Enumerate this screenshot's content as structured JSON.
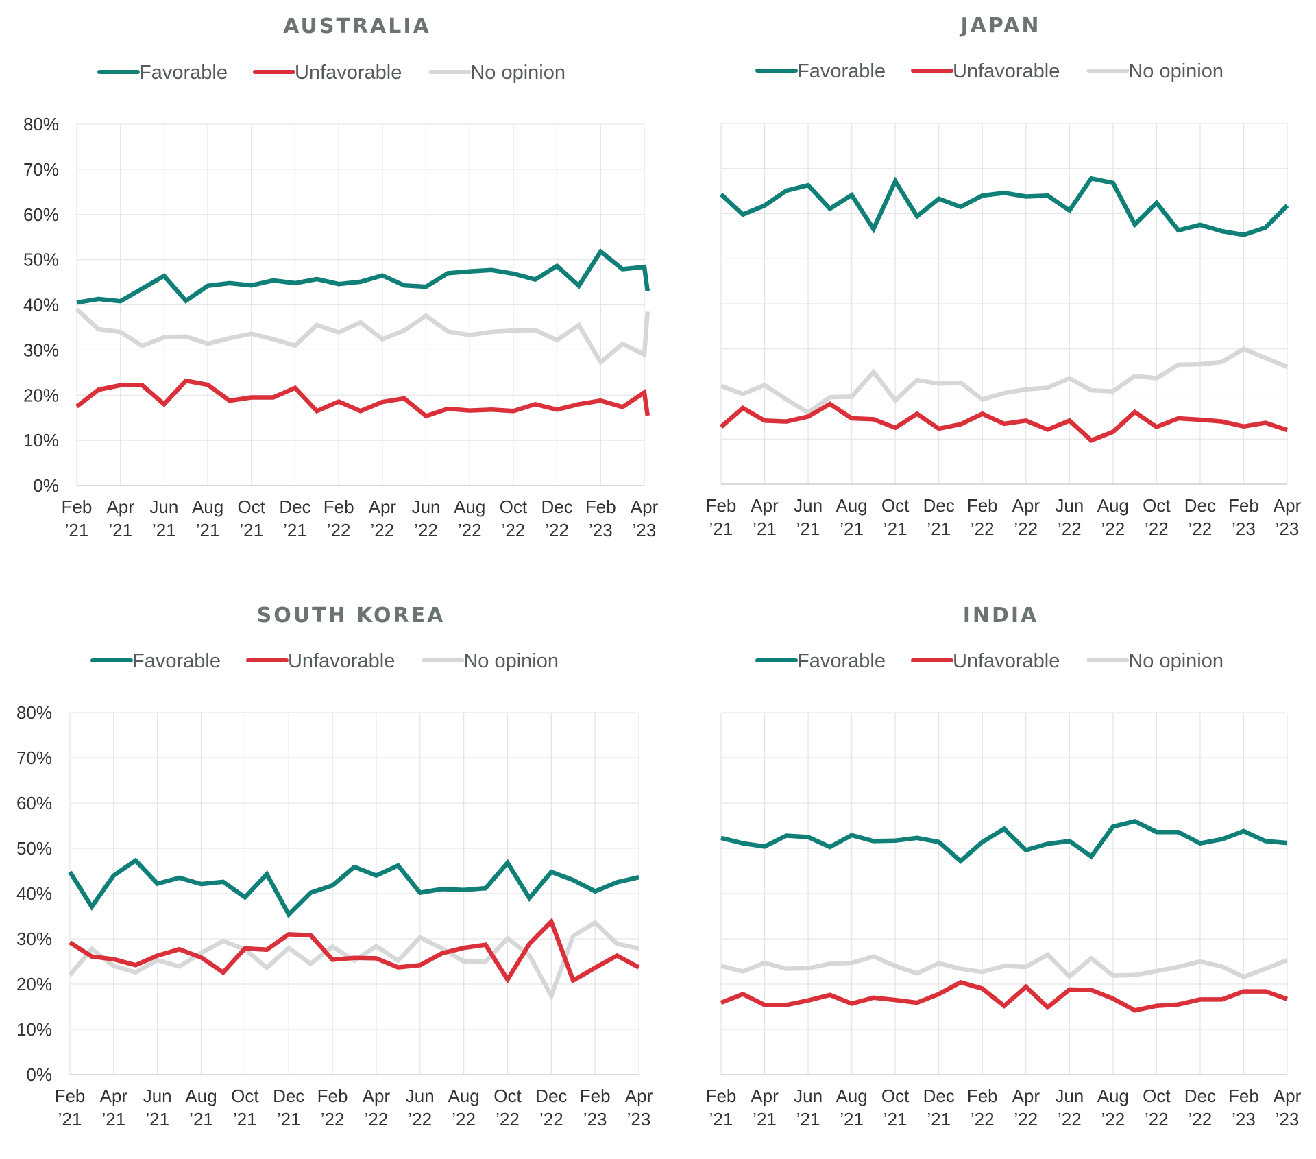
{
  "legend": [
    {
      "name": "Favorable",
      "color": "#0f7f78"
    },
    {
      "name": "Unfavorable",
      "color": "#d9303a"
    },
    {
      "name": "No opinion",
      "color": "#d6d8d7"
    }
  ],
  "chart_data": [
    {
      "type": "line",
      "title": "AUSTRALIA",
      "ylim": [
        0,
        80
      ],
      "yticks": [
        "0%",
        "10%",
        "20%",
        "30%",
        "40%",
        "50%",
        "60%",
        "70%",
        "80%"
      ],
      "xtick_labels": [
        [
          "Feb",
          "’21"
        ],
        [
          "Apr",
          "’21"
        ],
        [
          "Jun",
          "’21"
        ],
        [
          "Aug",
          "’21"
        ],
        [
          "Oct",
          "’21"
        ],
        [
          "Dec",
          "’21"
        ],
        [
          "Feb",
          "’22"
        ],
        [
          "Apr",
          "’22"
        ],
        [
          "Jun",
          "’22"
        ],
        [
          "Aug",
          "’22"
        ],
        [
          "Oct",
          "’22"
        ],
        [
          "Dec",
          "’22"
        ],
        [
          "Feb",
          "’23"
        ],
        [
          "Apr",
          "’23"
        ]
      ],
      "grid": true,
      "series": [
        {
          "name": "Favorable",
          "x": [
            0,
            1,
            2,
            3,
            4,
            5,
            6,
            7,
            8,
            9,
            10,
            11,
            12,
            13,
            14,
            15,
            16,
            17,
            18,
            19,
            20,
            21,
            22,
            23,
            24,
            25,
            26,
            26.15
          ],
          "values": [
            40.5,
            41.3,
            40.8,
            43.6,
            46.4,
            40.9,
            44.2,
            44.8,
            44.3,
            45.4,
            44.8,
            45.7,
            44.6,
            45.1,
            46.5,
            44.3,
            44.0,
            47.0,
            47.4,
            47.7,
            46.9,
            45.6,
            48.6,
            44.2,
            51.8,
            47.9,
            48.4,
            43.0
          ]
        },
        {
          "name": "Unfavorable",
          "x": [
            0,
            1,
            2,
            3,
            4,
            5,
            6,
            7,
            8,
            9,
            10,
            11,
            12,
            13,
            14,
            15,
            16,
            17,
            18,
            19,
            20,
            21,
            22,
            23,
            24,
            25,
            26,
            26.15
          ],
          "values": [
            17.5,
            21.2,
            22.2,
            22.2,
            18.0,
            23.2,
            22.3,
            18.8,
            19.5,
            19.5,
            21.6,
            16.5,
            18.6,
            16.5,
            18.5,
            19.3,
            15.4,
            17.0,
            16.6,
            16.8,
            16.5,
            18.0,
            16.8,
            18.0,
            18.8,
            17.4,
            20.6,
            15.5
          ]
        },
        {
          "name": "No opinion",
          "x": [
            0,
            1,
            2,
            3,
            4,
            5,
            6,
            7,
            8,
            9,
            10,
            11,
            12,
            13,
            14,
            15,
            16,
            17,
            18,
            19,
            20,
            21,
            22,
            23,
            24,
            25,
            26,
            26.15
          ],
          "values": [
            39.0,
            34.6,
            34.0,
            30.9,
            32.8,
            33.0,
            31.4,
            32.6,
            33.6,
            32.4,
            31.0,
            35.5,
            33.9,
            36.1,
            32.4,
            34.3,
            37.6,
            34.1,
            33.3,
            34.0,
            34.3,
            34.4,
            32.2,
            35.5,
            27.3,
            31.4,
            29.0,
            38.5
          ]
        }
      ]
    },
    {
      "type": "line",
      "title": "JAPAN",
      "ylim": [
        0,
        80
      ],
      "yticks": [],
      "xtick_labels": [
        [
          "Feb",
          "’21"
        ],
        [
          "Apr",
          "’21"
        ],
        [
          "Jun",
          "’21"
        ],
        [
          "Aug",
          "’21"
        ],
        [
          "Oct",
          "’21"
        ],
        [
          "Dec",
          "’21"
        ],
        [
          "Feb",
          "’22"
        ],
        [
          "Apr",
          "’22"
        ],
        [
          "Jun",
          "’22"
        ],
        [
          "Aug",
          "’22"
        ],
        [
          "Oct",
          "’22"
        ],
        [
          "Dec",
          "’22"
        ],
        [
          "Feb",
          "’23"
        ],
        [
          "Apr",
          "’23"
        ]
      ],
      "grid": true,
      "series": [
        {
          "name": "Favorable",
          "x": [
            0,
            1,
            2,
            3,
            4,
            5,
            6,
            7,
            8,
            9,
            10,
            11,
            12,
            13,
            14,
            15,
            16,
            17,
            18,
            19,
            20,
            21,
            22,
            23,
            24,
            25,
            26
          ],
          "values": [
            64.3,
            59.8,
            61.8,
            65.1,
            66.3,
            61.1,
            64.1,
            56.6,
            67.2,
            59.4,
            63.3,
            61.5,
            64.0,
            64.6,
            63.8,
            64.0,
            60.7,
            67.8,
            66.8,
            57.6,
            62.4,
            56.3,
            57.5,
            56.1,
            55.3,
            56.9,
            61.8
          ]
        },
        {
          "name": "Unfavorable",
          "x": [
            0,
            1,
            2,
            3,
            4,
            5,
            6,
            7,
            8,
            9,
            10,
            11,
            12,
            13,
            14,
            15,
            16,
            17,
            18,
            19,
            20,
            21,
            22,
            23,
            24,
            25,
            26
          ],
          "values": [
            12.7,
            16.9,
            14.1,
            13.9,
            15.0,
            17.8,
            14.6,
            14.4,
            12.5,
            15.6,
            12.3,
            13.3,
            15.6,
            13.4,
            14.1,
            12.1,
            14.1,
            9.7,
            11.6,
            16.0,
            12.7,
            14.6,
            14.3,
            13.9,
            12.8,
            13.6,
            12.0
          ]
        },
        {
          "name": "No opinion",
          "x": [
            0,
            1,
            2,
            3,
            4,
            5,
            6,
            7,
            8,
            9,
            10,
            11,
            12,
            13,
            14,
            15,
            16,
            17,
            18,
            19,
            20,
            21,
            22,
            23,
            24,
            25,
            26
          ],
          "values": [
            21.8,
            20.0,
            22.0,
            18.8,
            15.9,
            19.3,
            19.4,
            24.9,
            18.6,
            23.1,
            22.3,
            22.5,
            18.8,
            20.2,
            21.0,
            21.4,
            23.5,
            20.8,
            20.6,
            24.0,
            23.5,
            26.5,
            26.6,
            27.1,
            30.0,
            28.0,
            26.0
          ]
        }
      ]
    },
    {
      "type": "line",
      "title": "SOUTH KOREA",
      "ylim": [
        0,
        80
      ],
      "yticks": [
        "0%",
        "10%",
        "20%",
        "30%",
        "40%",
        "50%",
        "60%",
        "70%",
        "80%"
      ],
      "xtick_labels": [
        [
          "Feb",
          "’21"
        ],
        [
          "Apr",
          "’21"
        ],
        [
          "Jun",
          "’21"
        ],
        [
          "Aug",
          "’21"
        ],
        [
          "Oct",
          "’21"
        ],
        [
          "Dec",
          "’21"
        ],
        [
          "Feb",
          "’22"
        ],
        [
          "Apr",
          "’22"
        ],
        [
          "Jun",
          "’22"
        ],
        [
          "Aug",
          "’22"
        ],
        [
          "Oct",
          "’22"
        ],
        [
          "Dec",
          "’22"
        ],
        [
          "Feb",
          "’23"
        ],
        [
          "Apr",
          "’23"
        ]
      ],
      "grid": true,
      "series": [
        {
          "name": "Favorable",
          "x": [
            0,
            1,
            2,
            3,
            4,
            5,
            6,
            7,
            8,
            9,
            10,
            11,
            12,
            13,
            14,
            15,
            16,
            17,
            18,
            19,
            20,
            21,
            22,
            23,
            24,
            25,
            26
          ],
          "values": [
            44.8,
            37.1,
            44.0,
            47.3,
            42.2,
            43.5,
            42.1,
            42.6,
            39.2,
            44.3,
            35.4,
            40.2,
            41.8,
            45.9,
            44.0,
            46.2,
            40.2,
            41.0,
            40.8,
            41.2,
            46.8,
            39.0,
            44.8,
            43.0,
            40.5,
            42.5,
            43.6
          ]
        },
        {
          "name": "Unfavorable",
          "x": [
            0,
            1,
            2,
            3,
            4,
            5,
            6,
            7,
            8,
            9,
            10,
            11,
            12,
            13,
            14,
            15,
            16,
            17,
            18,
            19,
            20,
            21,
            22,
            23,
            24,
            25,
            26
          ],
          "values": [
            29.2,
            26.1,
            25.5,
            24.2,
            26.3,
            27.7,
            25.9,
            22.6,
            27.9,
            27.6,
            31.0,
            30.8,
            25.4,
            25.8,
            25.7,
            23.7,
            24.2,
            26.8,
            28.0,
            28.7,
            21.0,
            28.9,
            33.8,
            20.8,
            23.6,
            26.3,
            23.7
          ]
        },
        {
          "name": "No opinion",
          "x": [
            0,
            1,
            2,
            3,
            4,
            5,
            6,
            7,
            8,
            9,
            10,
            11,
            12,
            13,
            14,
            15,
            16,
            17,
            18,
            19,
            20,
            21,
            22,
            23,
            24,
            25,
            26
          ],
          "values": [
            22.0,
            27.8,
            24.0,
            22.6,
            25.3,
            23.9,
            26.9,
            29.5,
            27.7,
            23.6,
            28.0,
            24.5,
            28.3,
            25.2,
            28.4,
            25.2,
            30.3,
            27.9,
            25.0,
            25.0,
            30.1,
            26.4,
            17.4,
            30.6,
            33.6,
            28.9,
            27.9
          ]
        }
      ]
    },
    {
      "type": "line",
      "title": "INDIA",
      "ylim": [
        0,
        80
      ],
      "yticks": [],
      "xtick_labels": [
        [
          "Feb",
          "’21"
        ],
        [
          "Apr",
          "’21"
        ],
        [
          "Jun",
          "’21"
        ],
        [
          "Aug",
          "’21"
        ],
        [
          "Oct",
          "’21"
        ],
        [
          "Dec",
          "’21"
        ],
        [
          "Feb",
          "’22"
        ],
        [
          "Apr",
          "’22"
        ],
        [
          "Jun",
          "’22"
        ],
        [
          "Aug",
          "’22"
        ],
        [
          "Oct",
          "’22"
        ],
        [
          "Dec",
          "’22"
        ],
        [
          "Feb",
          "’23"
        ],
        [
          "Apr",
          "’23"
        ]
      ],
      "grid": true,
      "series": [
        {
          "name": "Favorable",
          "x": [
            0,
            1,
            2,
            3,
            4,
            5,
            6,
            7,
            8,
            9,
            10,
            11,
            12,
            13,
            14,
            15,
            16,
            17,
            18,
            19,
            20,
            21,
            22,
            23,
            24,
            25,
            26
          ],
          "values": [
            52.3,
            51.1,
            50.4,
            52.8,
            52.5,
            50.3,
            52.9,
            51.6,
            51.7,
            52.3,
            51.4,
            47.2,
            51.4,
            54.3,
            49.6,
            51.0,
            51.6,
            48.2,
            54.8,
            56.0,
            53.6,
            53.6,
            51.1,
            52.0,
            53.8,
            51.6,
            51.2
          ]
        },
        {
          "name": "Unfavorable",
          "x": [
            0,
            1,
            2,
            3,
            4,
            5,
            6,
            7,
            8,
            9,
            10,
            11,
            12,
            13,
            14,
            15,
            16,
            17,
            18,
            19,
            20,
            21,
            22,
            23,
            24,
            25,
            26
          ],
          "values": [
            15.9,
            17.8,
            15.4,
            15.4,
            16.4,
            17.6,
            15.7,
            17.0,
            16.5,
            15.9,
            17.8,
            20.4,
            19.0,
            15.2,
            19.4,
            14.9,
            18.8,
            18.7,
            16.8,
            14.2,
            15.2,
            15.5,
            16.6,
            16.6,
            18.4,
            18.4,
            16.7
          ]
        },
        {
          "name": "No opinion",
          "x": [
            0,
            1,
            2,
            3,
            4,
            5,
            6,
            7,
            8,
            9,
            10,
            11,
            12,
            13,
            14,
            15,
            16,
            17,
            18,
            19,
            20,
            21,
            22,
            23,
            24,
            25,
            26
          ],
          "values": [
            24.0,
            22.8,
            24.7,
            23.4,
            23.5,
            24.5,
            24.7,
            26.1,
            24.0,
            22.4,
            24.6,
            23.4,
            22.7,
            24.0,
            23.8,
            26.5,
            21.7,
            25.7,
            21.9,
            22.0,
            22.9,
            23.8,
            25.0,
            23.9,
            21.6,
            23.4,
            25.3
          ]
        }
      ]
    }
  ]
}
